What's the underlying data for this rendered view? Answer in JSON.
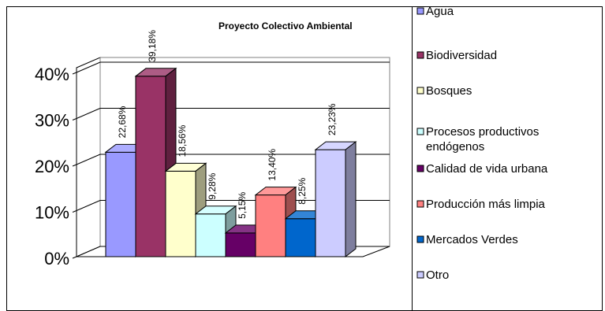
{
  "chart_data": {
    "type": "bar",
    "title": "Proyecto Colectivo Ambiental",
    "categories": [
      "Agua",
      "Biodiversidad",
      "Bosques",
      "Procesos productivos endógenos",
      "Calidad de vida urbana",
      "Producción más limpia",
      "Mercados Verdes",
      "Otro"
    ],
    "values": [
      22.68,
      39.18,
      18.56,
      9.28,
      5.15,
      13.4,
      8.25,
      23.23
    ],
    "data_labels": [
      "22,68%",
      "39,18%",
      "18,56%",
      "9,28%",
      "5,15%",
      "13,40%",
      "8,25%",
      "23,23%"
    ],
    "colors": [
      "#9999FF",
      "#993366",
      "#FFFFCC",
      "#CCFFFF",
      "#660066",
      "#FF8080",
      "#0066CC",
      "#CCCCFF"
    ],
    "ylim": [
      0,
      40
    ],
    "yticks": [
      0,
      10,
      20,
      30,
      40
    ],
    "ytick_labels": [
      "0%",
      "10%",
      "20%",
      "30%",
      "40%"
    ],
    "grid": true,
    "legend_position": "right",
    "legend": [
      {
        "line1": "Agua",
        "line2": ""
      },
      {
        "line1": "Biodiversidad",
        "line2": ""
      },
      {
        "line1": "Bosques",
        "line2": ""
      },
      {
        "line1": "Procesos productivos",
        "line2": "endógenos"
      },
      {
        "line1": "Calidad de vida urbana",
        "line2": ""
      },
      {
        "line1": "Producción más limpia",
        "line2": ""
      },
      {
        "line1": "Mercados Verdes",
        "line2": ""
      },
      {
        "line1": "Otro",
        "line2": ""
      }
    ]
  }
}
